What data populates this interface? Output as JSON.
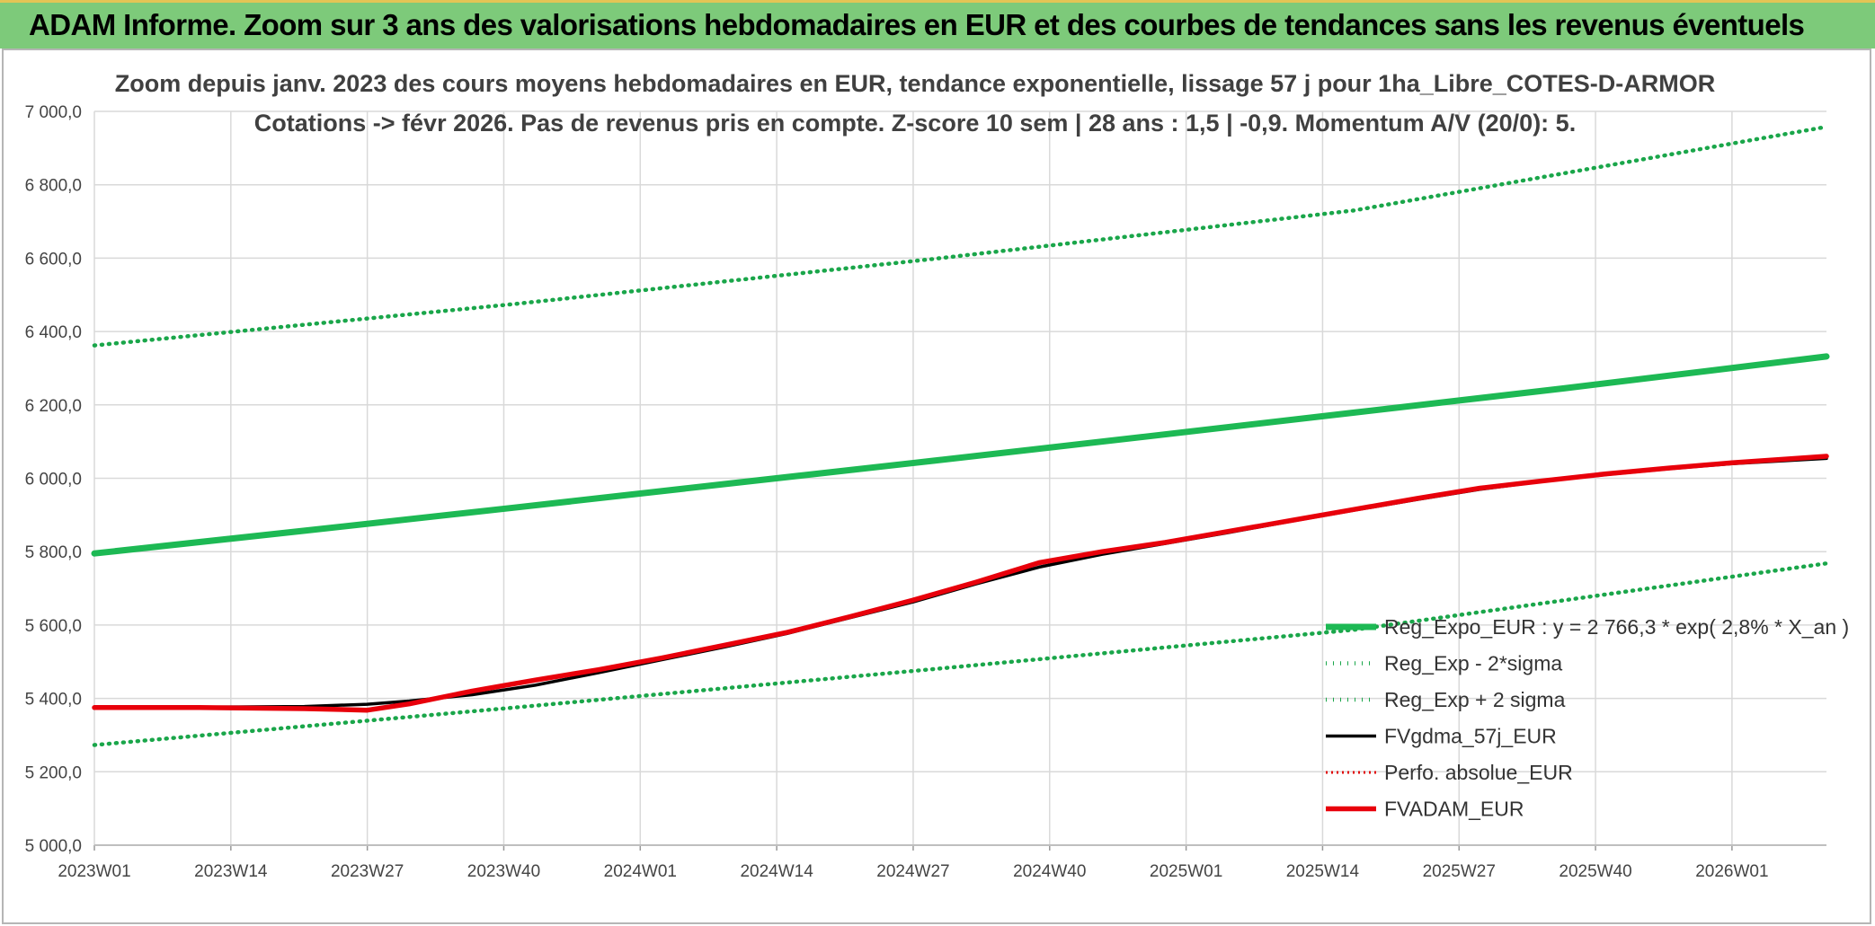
{
  "banner": {
    "title": "ADAM Informe. Zoom sur 3 ans des valorisations hebdomadaires en EUR et des courbes de tendances sans les revenus éventuels"
  },
  "colors": {
    "banner_bg": "#7dca7a",
    "reg_expo": "#1db954",
    "sigma_lines": "#1aa64a",
    "fvgdma": "#000000",
    "perfo": "#e00000",
    "fvadam": "#e8000b",
    "grid": "#d9d9d9"
  },
  "chart_data": {
    "type": "line",
    "title_line1": "Zoom depuis janv. 2023 des cours moyens hebdomadaires en EUR, tendance exponentielle, lissage 57 j pour 1ha_Libre_COTES-D-ARMOR",
    "title_line2": "Cotations -> févr 2026. Pas de revenus pris en compte. Z-score 10 sem | 28 ans : 1,5 | -0,9. Momentum A/V (20/0): 5.",
    "x_ticks": [
      "2023W01",
      "2023W14",
      "2023W27",
      "2023W40",
      "2024W01",
      "2024W14",
      "2024W27",
      "2024W40",
      "2025W01",
      "2025W14",
      "2025W27",
      "2025W40",
      "2026W01"
    ],
    "x_range": [
      0,
      165
    ],
    "y_ticks": [
      "5 000,0",
      "5 200,0",
      "5 400,0",
      "5 600,0",
      "5 800,0",
      "6 000,0",
      "6 200,0",
      "6 400,0",
      "6 600,0",
      "6 800,0",
      "7 000,0"
    ],
    "ylim": [
      5000,
      7000
    ],
    "grid": true,
    "legend_position": "right",
    "series": [
      {
        "name": "Reg_Expo_EUR : y = 2 766,3 * exp( 2,8% *  X_an )",
        "style": "solid-thick",
        "x": [
          0,
          20,
          40,
          60,
          80,
          100,
          120,
          140,
          165
        ],
        "y": [
          5795,
          5857,
          5920,
          5984,
          6048,
          6113,
          6179,
          6245,
          6332
        ]
      },
      {
        "name": "Reg_Exp - 2*sigma",
        "style": "dotted",
        "x": [
          0,
          40,
          80,
          120,
          165
        ],
        "y": [
          5273,
          5375,
          5480,
          5587,
          5768
        ]
      },
      {
        "name": "Reg_Exp + 2 sigma",
        "style": "dotted",
        "x": [
          0,
          40,
          80,
          120,
          165
        ],
        "y": [
          6362,
          6475,
          6598,
          6730,
          6958
        ]
      },
      {
        "name": "FVgdma_57j_EUR",
        "style": "solid",
        "x": [
          0,
          10,
          20,
          26,
          30,
          36,
          42,
          48,
          54,
          60,
          66,
          72,
          78,
          84,
          90,
          96,
          102,
          108,
          114,
          120,
          126,
          132,
          138,
          144,
          150,
          156,
          165
        ],
        "y": [
          5373,
          5376,
          5378,
          5384,
          5393,
          5410,
          5436,
          5470,
          5505,
          5540,
          5577,
          5620,
          5663,
          5712,
          5758,
          5793,
          5822,
          5852,
          5883,
          5913,
          5942,
          5970,
          5992,
          6010,
          6026,
          6040,
          6054
        ]
      },
      {
        "name": "Perfo. absolue_EUR",
        "style": "dotted-red",
        "x": [],
        "y": []
      },
      {
        "name": "FVADAM_EUR",
        "style": "solid-thick",
        "x": [
          0,
          10,
          20,
          26,
          30,
          36,
          42,
          48,
          54,
          60,
          66,
          72,
          78,
          84,
          90,
          96,
          102,
          108,
          114,
          120,
          126,
          132,
          138,
          144,
          150,
          156,
          165
        ],
        "y": [
          5375,
          5375,
          5372,
          5368,
          5385,
          5420,
          5450,
          5478,
          5510,
          5545,
          5580,
          5623,
          5668,
          5717,
          5770,
          5800,
          5825,
          5855,
          5885,
          5915,
          5945,
          5973,
          5993,
          6012,
          6028,
          6042,
          6060
        ]
      }
    ]
  }
}
